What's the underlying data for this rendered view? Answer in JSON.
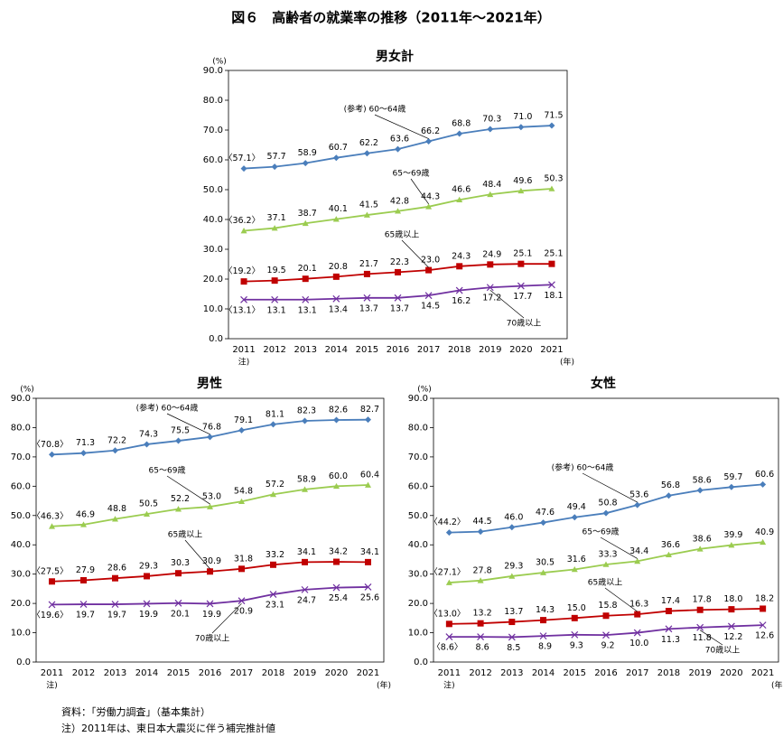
{
  "title": "図６　高齢者の就業率の推移（2011年～2021年）",
  "notes": [
    "資料：「労働力調査」（基本集計）",
    "注）2011年は、東日本大震災に伴う補完推計値"
  ],
  "chart_data": [
    {
      "type": "line",
      "title": "男女計",
      "y_unit": "(%)",
      "x_unit": "(年)",
      "x_note": "注)",
      "categories": [
        "2011",
        "2012",
        "2013",
        "2014",
        "2015",
        "2016",
        "2017",
        "2018",
        "2019",
        "2020",
        "2021"
      ],
      "ylim": [
        0,
        90
      ],
      "yticks": [
        {
          "value": 0,
          "label": "0.0"
        },
        {
          "value": 10,
          "label": "10.0"
        },
        {
          "value": 20,
          "label": "20.0"
        },
        {
          "value": 30,
          "label": "30.0"
        },
        {
          "value": 40,
          "label": "40.0"
        },
        {
          "value": 50,
          "label": "50.0"
        },
        {
          "value": 60,
          "label": "60.0"
        },
        {
          "value": 70,
          "label": "70.0"
        },
        {
          "value": 80,
          "label": "80.0"
        },
        {
          "value": 90,
          "label": "90.0"
        }
      ],
      "series": [
        {
          "name": "(参考) 60～64歳",
          "color": "#4a7ebb",
          "marker": "diamond",
          "values": [
            57.1,
            57.7,
            58.9,
            60.7,
            62.2,
            63.6,
            66.2,
            68.8,
            70.3,
            71.0,
            71.5
          ],
          "value_labels": [
            "〈57.1〉",
            "57.7",
            "58.9",
            "60.7",
            "62.2",
            "63.6",
            "66.2",
            "68.8",
            "70.3",
            "71.0",
            "71.5"
          ]
        },
        {
          "name": "65～69歳",
          "color": "#9bcc50",
          "marker": "triangle",
          "values": [
            36.2,
            37.1,
            38.7,
            40.1,
            41.5,
            42.8,
            44.3,
            46.6,
            48.4,
            49.6,
            50.3
          ],
          "value_labels": [
            "〈36.2〉",
            "37.1",
            "38.7",
            "40.1",
            "41.5",
            "42.8",
            "44.3",
            "46.6",
            "48.4",
            "49.6",
            "50.3"
          ]
        },
        {
          "name": "65歳以上",
          "color": "#c00000",
          "marker": "square",
          "values": [
            19.2,
            19.5,
            20.1,
            20.8,
            21.7,
            22.3,
            23.0,
            24.3,
            24.9,
            25.1,
            25.1
          ],
          "value_labels": [
            "〈19.2〉",
            "19.5",
            "20.1",
            "20.8",
            "21.7",
            "22.3",
            "23.0",
            "24.3",
            "24.9",
            "25.1",
            "25.1"
          ]
        },
        {
          "name": "70歳以上",
          "color": "#7030a0",
          "marker": "x",
          "values": [
            13.1,
            13.1,
            13.1,
            13.4,
            13.7,
            13.7,
            14.5,
            16.2,
            17.2,
            17.7,
            18.1
          ],
          "value_labels": [
            "〈13.1〉",
            "13.1",
            "13.1",
            "13.4",
            "13.7",
            "13.7",
            "14.5",
            "16.2",
            "17.2",
            "17.7",
            "18.1"
          ]
        }
      ]
    },
    {
      "type": "line",
      "title": "男性",
      "y_unit": "(%)",
      "x_unit": "(年)",
      "x_note": "注)",
      "categories": [
        "2011",
        "2012",
        "2013",
        "2014",
        "2015",
        "2016",
        "2017",
        "2018",
        "2019",
        "2020",
        "2021"
      ],
      "ylim": [
        0,
        90
      ],
      "yticks": [
        {
          "value": 0,
          "label": "0.0"
        },
        {
          "value": 10,
          "label": "10.0"
        },
        {
          "value": 20,
          "label": "20.0"
        },
        {
          "value": 30,
          "label": "30.0"
        },
        {
          "value": 40,
          "label": "40.0"
        },
        {
          "value": 50,
          "label": "50.0"
        },
        {
          "value": 60,
          "label": "60.0"
        },
        {
          "value": 70,
          "label": "70.0"
        },
        {
          "value": 80,
          "label": "80.0"
        },
        {
          "value": 90,
          "label": "90.0"
        }
      ],
      "series": [
        {
          "name": "(参考) 60～64歳",
          "color": "#4a7ebb",
          "marker": "diamond",
          "values": [
            70.8,
            71.3,
            72.2,
            74.3,
            75.5,
            76.8,
            79.1,
            81.1,
            82.3,
            82.6,
            82.7
          ],
          "value_labels": [
            "〈70.8〉",
            "71.3",
            "72.2",
            "74.3",
            "75.5",
            "76.8",
            "79.1",
            "81.1",
            "82.3",
            "82.6",
            "82.7"
          ]
        },
        {
          "name": "65～69歳",
          "color": "#9bcc50",
          "marker": "triangle",
          "values": [
            46.3,
            46.9,
            48.8,
            50.5,
            52.2,
            53.0,
            54.8,
            57.2,
            58.9,
            60.0,
            60.4
          ],
          "value_labels": [
            "〈46.3〉",
            "46.9",
            "48.8",
            "50.5",
            "52.2",
            "53.0",
            "54.8",
            "57.2",
            "58.9",
            "60.0",
            "60.4"
          ]
        },
        {
          "name": "65歳以上",
          "color": "#c00000",
          "marker": "square",
          "values": [
            27.5,
            27.9,
            28.6,
            29.3,
            30.3,
            30.9,
            31.8,
            33.2,
            34.1,
            34.2,
            34.1
          ],
          "value_labels": [
            "〈27.5〉",
            "27.9",
            "28.6",
            "29.3",
            "30.3",
            "30.9",
            "31.8",
            "33.2",
            "34.1",
            "34.2",
            "34.1"
          ]
        },
        {
          "name": "70歳以上",
          "color": "#7030a0",
          "marker": "x",
          "values": [
            19.6,
            19.7,
            19.7,
            19.9,
            20.1,
            19.9,
            20.9,
            23.1,
            24.7,
            25.4,
            25.6
          ],
          "value_labels": [
            "〈19.6〉",
            "19.7",
            "19.7",
            "19.9",
            "20.1",
            "19.9",
            "20.9",
            "23.1",
            "24.7",
            "25.4",
            "25.6"
          ]
        }
      ]
    },
    {
      "type": "line",
      "title": "女性",
      "y_unit": "(%)",
      "x_unit": "(年)",
      "x_note": "注)",
      "categories": [
        "2011",
        "2012",
        "2013",
        "2014",
        "2015",
        "2016",
        "2017",
        "2018",
        "2019",
        "2020",
        "2021"
      ],
      "ylim": [
        0,
        90
      ],
      "yticks": [
        {
          "value": 0,
          "label": "0.0"
        },
        {
          "value": 10,
          "label": "10.0"
        },
        {
          "value": 20,
          "label": "20.0"
        },
        {
          "value": 30,
          "label": "30.0"
        },
        {
          "value": 40,
          "label": "40.0"
        },
        {
          "value": 50,
          "label": "50.0"
        },
        {
          "value": 60,
          "label": "60.0"
        },
        {
          "value": 70,
          "label": "70.0"
        },
        {
          "value": 80,
          "label": "80.0"
        },
        {
          "value": 90,
          "label": "90.0"
        }
      ],
      "series": [
        {
          "name": "(参考) 60～64歳",
          "color": "#4a7ebb",
          "marker": "diamond",
          "values": [
            44.2,
            44.5,
            46.0,
            47.6,
            49.4,
            50.8,
            53.6,
            56.8,
            58.6,
            59.7,
            60.6
          ],
          "value_labels": [
            "〈44.2〉",
            "44.5",
            "46.0",
            "47.6",
            "49.4",
            "50.8",
            "53.6",
            "56.8",
            "58.6",
            "59.7",
            "60.6"
          ]
        },
        {
          "name": "65～69歳",
          "color": "#9bcc50",
          "marker": "triangle",
          "values": [
            27.1,
            27.8,
            29.3,
            30.5,
            31.6,
            33.3,
            34.4,
            36.6,
            38.6,
            39.9,
            40.9
          ],
          "value_labels": [
            "〈27.1〉",
            "27.8",
            "29.3",
            "30.5",
            "31.6",
            "33.3",
            "34.4",
            "36.6",
            "38.6",
            "39.9",
            "40.9"
          ]
        },
        {
          "name": "65歳以上",
          "color": "#c00000",
          "marker": "square",
          "values": [
            13.0,
            13.2,
            13.7,
            14.3,
            15.0,
            15.8,
            16.3,
            17.4,
            17.8,
            18.0,
            18.2
          ],
          "value_labels": [
            "〈13.0〉",
            "13.2",
            "13.7",
            "14.3",
            "15.0",
            "15.8",
            "16.3",
            "17.4",
            "17.8",
            "18.0",
            "18.2"
          ]
        },
        {
          "name": "70歳以上",
          "color": "#7030a0",
          "marker": "x",
          "values": [
            8.6,
            8.6,
            8.5,
            8.9,
            9.3,
            9.2,
            10.0,
            11.3,
            11.8,
            12.2,
            12.6
          ],
          "value_labels": [
            "〈8.6〉",
            "8.6",
            "8.5",
            "8.9",
            "9.3",
            "9.2",
            "10.0",
            "11.3",
            "11.8",
            "12.2",
            "12.6"
          ]
        }
      ]
    }
  ]
}
